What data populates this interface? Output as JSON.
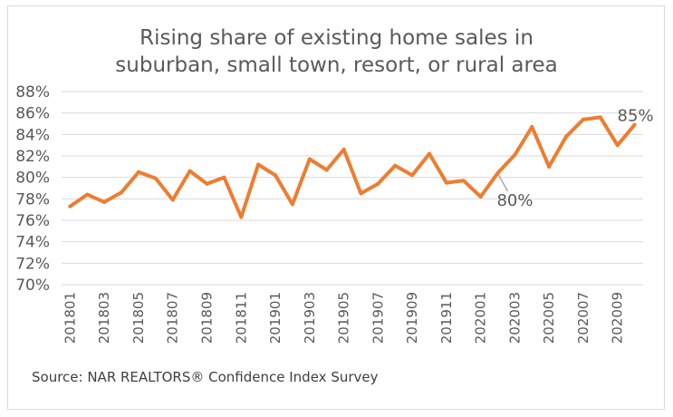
{
  "chart_data": {
    "type": "line",
    "title": [
      "Rising share of existing home sales in",
      "suburban, small town, resort, or rural area"
    ],
    "xlabel": "",
    "ylabel": "",
    "ylim": [
      70,
      88
    ],
    "yticks": [
      70,
      72,
      74,
      76,
      78,
      80,
      82,
      84,
      86,
      88
    ],
    "ytick_labels": [
      "70%",
      "72%",
      "74%",
      "76%",
      "78%",
      "80%",
      "82%",
      "84%",
      "86%",
      "88%"
    ],
    "grid": true,
    "x": [
      "201801",
      "201802",
      "201803",
      "201804",
      "201805",
      "201806",
      "201807",
      "201808",
      "201809",
      "201810",
      "201811",
      "201812",
      "201901",
      "201902",
      "201903",
      "201904",
      "201905",
      "201906",
      "201907",
      "201908",
      "201909",
      "201910",
      "201911",
      "201912",
      "202001",
      "202002",
      "202003",
      "202004",
      "202005",
      "202006",
      "202007",
      "202008",
      "202009",
      "202010"
    ],
    "xtick_labels": [
      "201801",
      "201803",
      "201805",
      "201807",
      "201809",
      "201811",
      "201901",
      "201903",
      "201905",
      "201907",
      "201909",
      "201911",
      "202001",
      "202003",
      "202005",
      "202007",
      "202009"
    ],
    "series": [
      {
        "values": [
          77.3,
          78.4,
          77.7,
          78.6,
          80.5,
          79.9,
          77.9,
          80.6,
          79.4,
          80.0,
          76.3,
          81.2,
          80.2,
          77.5,
          81.7,
          80.7,
          82.6,
          78.5,
          79.4,
          81.1,
          80.2,
          82.2,
          79.5,
          79.7,
          78.2,
          80.4,
          82.1,
          84.7,
          81.0,
          83.8,
          85.4,
          85.6,
          83.0,
          84.9
        ],
        "color": "#ED7D31"
      }
    ],
    "annotations": [
      {
        "x": "202002",
        "y": 80.4,
        "text": "80%"
      },
      {
        "x": "202010",
        "y": 84.9,
        "text": "85%"
      }
    ],
    "source": "Source: NAR REALTORS® Confidence Index Survey"
  }
}
